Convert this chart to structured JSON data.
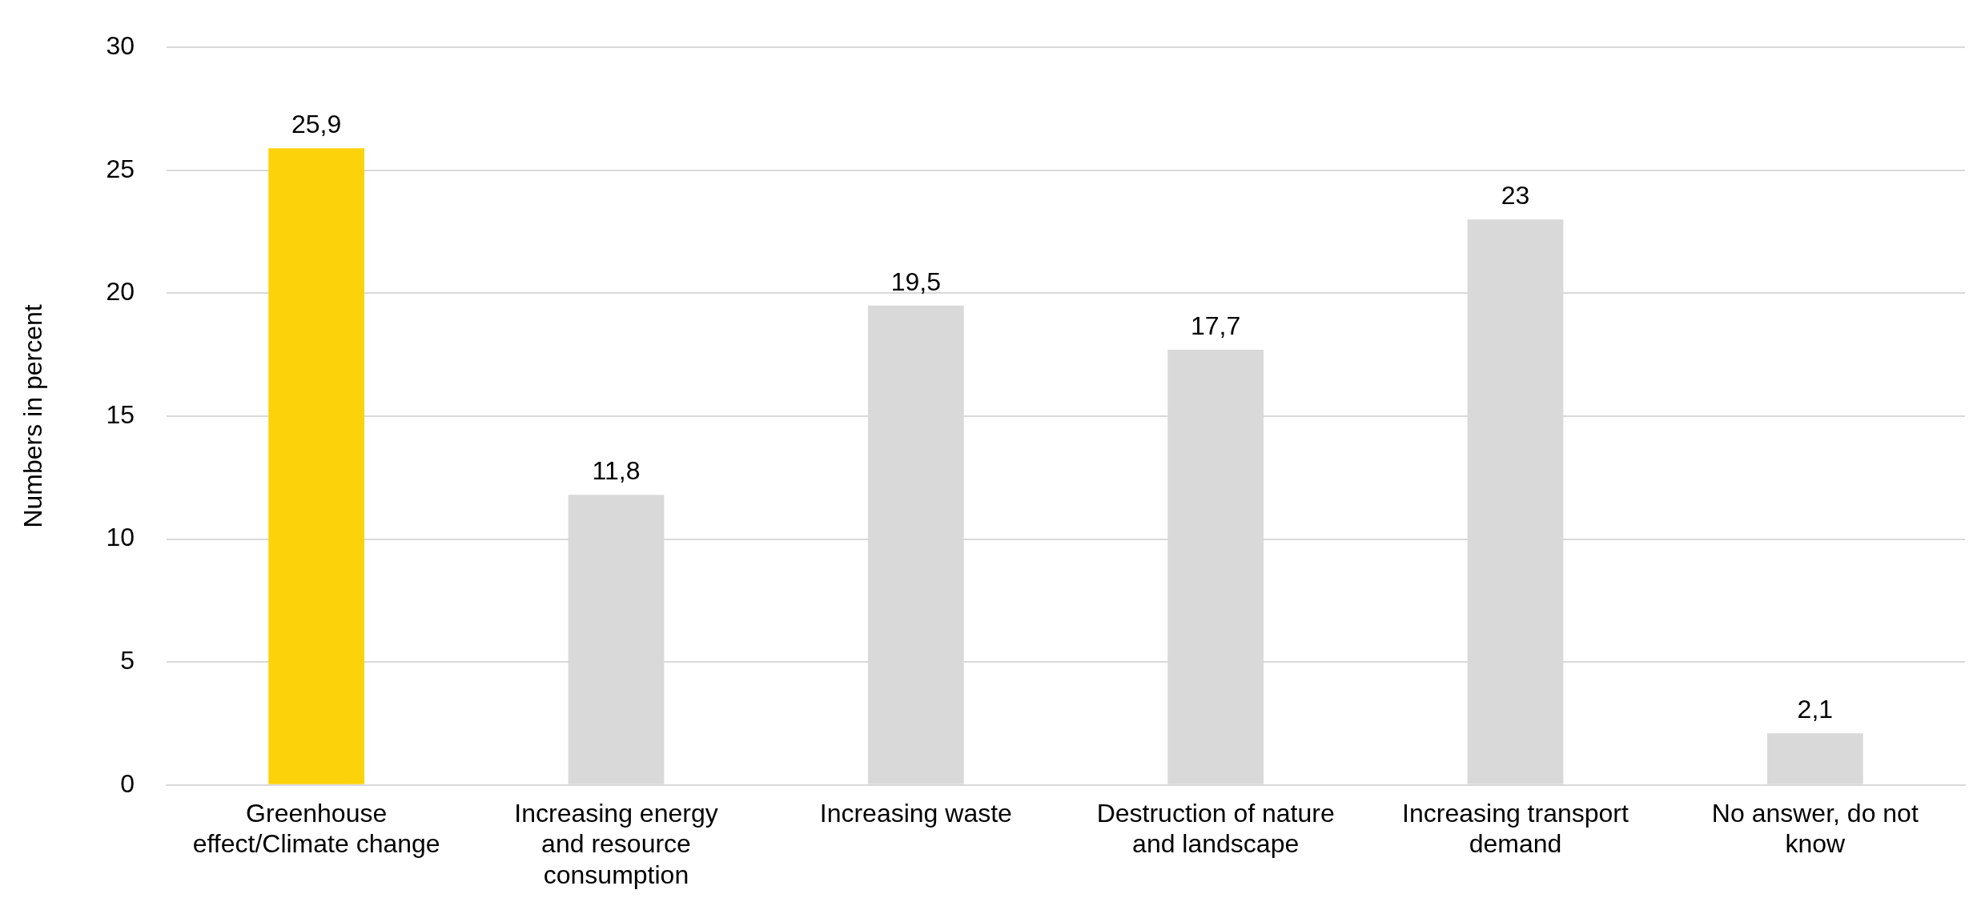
{
  "chart_data": {
    "type": "bar",
    "ylabel": "Numbers in percent",
    "categories": [
      "Greenhouse effect/Climate change",
      "Increasing energy and resource consumption",
      "Increasing waste",
      "Destruction of nature and landscape",
      "Increasing transport demand",
      "No answer, do not know"
    ],
    "values": [
      25.9,
      11.8,
      19.5,
      17.7,
      23,
      2.1
    ],
    "colors": [
      "#fcd20a",
      "#d9d9d9",
      "#d9d9d9",
      "#d9d9d9",
      "#d9d9d9",
      "#d9d9d9"
    ],
    "value_labels": [
      "25,9",
      "11,8",
      "19,5",
      "17,7",
      "23",
      "2,1"
    ],
    "ylim": [
      0,
      30
    ],
    "yticks": [
      0,
      5,
      10,
      15,
      20,
      25,
      30
    ],
    "grid": "y",
    "legend": false
  }
}
